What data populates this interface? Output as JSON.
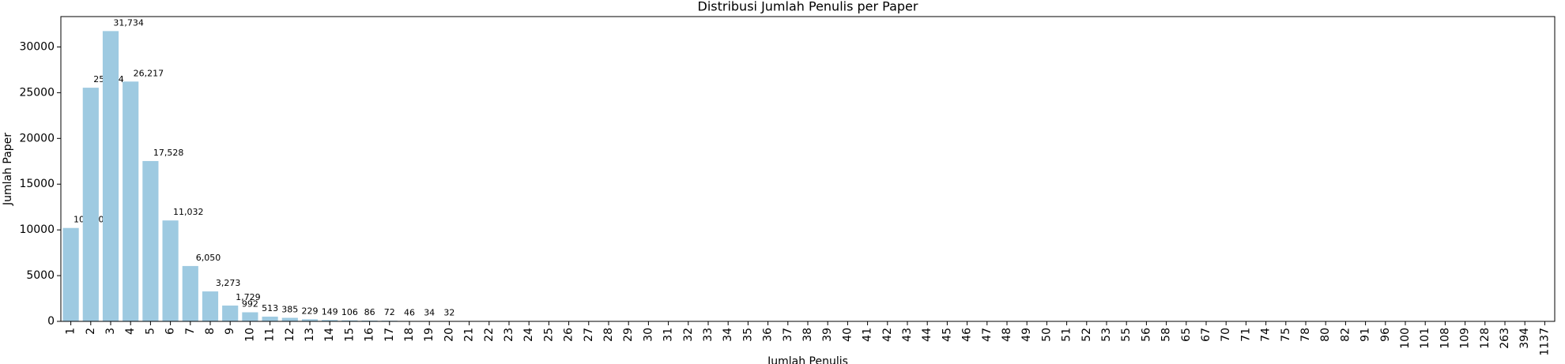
{
  "chart_data": {
    "type": "bar",
    "title": "Distribusi Jumlah Penulis per Paper",
    "x_label": "Jumlah Penulis",
    "y_label": "Jumlah Paper",
    "categories": [
      "1",
      "2",
      "3",
      "4",
      "5",
      "6",
      "7",
      "8",
      "9",
      "10",
      "11",
      "12",
      "13",
      "14",
      "15",
      "16",
      "17",
      "18",
      "19",
      "20",
      "21",
      "22",
      "23",
      "24",
      "25",
      "26",
      "27",
      "28",
      "29",
      "30",
      "31",
      "32",
      "33",
      "34",
      "35",
      "36",
      "37",
      "38",
      "39",
      "40",
      "41",
      "42",
      "43",
      "44",
      "45",
      "46",
      "47",
      "48",
      "49",
      "50",
      "51",
      "52",
      "53",
      "55",
      "56",
      "58",
      "65",
      "67",
      "70",
      "71",
      "74",
      "75",
      "78",
      "80",
      "82",
      "91",
      "96",
      "100",
      "101",
      "108",
      "109",
      "128",
      "263",
      "394",
      "1137"
    ],
    "values": [
      10210,
      25544,
      31734,
      26217,
      17528,
      11032,
      6050,
      3273,
      1729,
      992,
      513,
      385,
      229,
      149,
      106,
      86,
      72,
      46,
      34,
      32,
      28,
      22,
      18,
      15,
      12,
      10,
      9,
      8,
      7,
      6,
      5,
      5,
      4,
      4,
      3,
      3,
      3,
      3,
      2,
      2,
      2,
      2,
      2,
      2,
      2,
      1,
      1,
      1,
      1,
      1,
      1,
      1,
      1,
      1,
      1,
      1,
      1,
      1,
      1,
      1,
      1,
      1,
      1,
      1,
      1,
      1,
      1,
      1,
      1,
      1,
      1,
      1,
      1,
      1,
      1
    ],
    "value_labels": [
      "10,210",
      "25,544",
      "31,734",
      "26,217",
      "17,528",
      "11,032",
      "6,050",
      "3,273",
      "1,729",
      "992",
      "513",
      "385",
      "229",
      "149",
      "106",
      "86",
      "72",
      "46",
      "34",
      "32",
      null,
      null,
      null,
      null,
      null,
      null,
      null,
      null,
      null,
      null,
      null,
      null,
      null,
      null,
      null,
      null,
      null,
      null,
      null,
      null,
      null,
      null,
      null,
      null,
      null,
      null,
      null,
      null,
      null,
      null,
      null,
      null,
      null,
      null,
      null,
      null,
      null,
      null,
      null,
      null,
      null,
      null,
      null,
      null,
      null,
      null,
      null,
      null,
      null,
      null,
      null,
      null,
      null,
      null,
      null
    ],
    "color": "#9ecae1",
    "ylim": [
      0,
      33320
    ],
    "yticks": [
      0,
      5000,
      10000,
      15000,
      20000,
      25000,
      30000
    ]
  }
}
